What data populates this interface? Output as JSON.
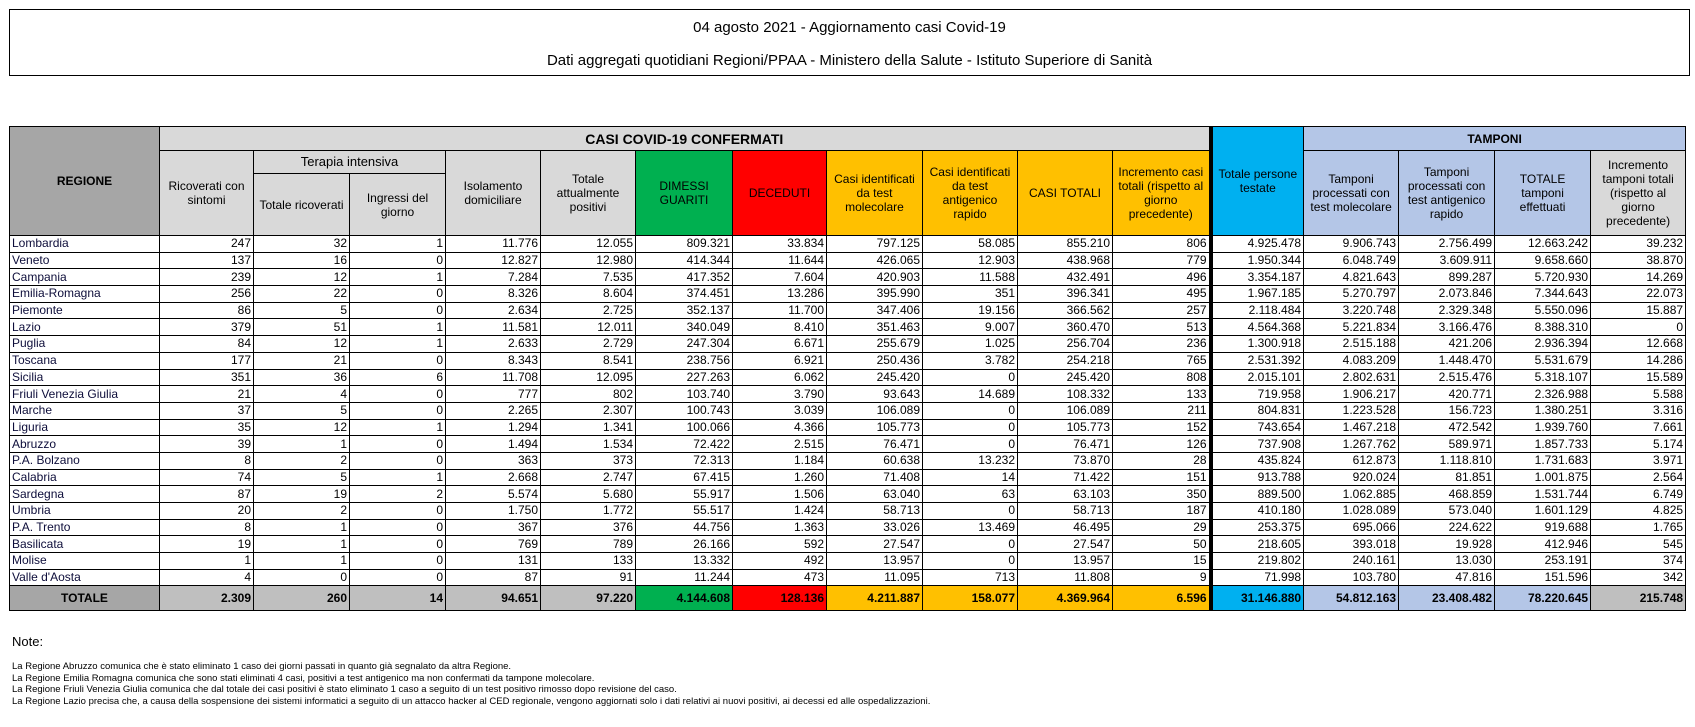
{
  "header": {
    "title": "04 agosto 2021 - Aggiornamento casi Covid-19",
    "subtitle": "Dati aggregati quotidiani Regioni/PPAA - Ministero della Salute - Istituto Superiore di Sanità"
  },
  "table": {
    "regione": "REGIONE",
    "casi_group": "CASI COVID-19 CONFERMATI",
    "terapia_group": "Terapia intensiva",
    "tamponi_group": "TAMPONI",
    "columns": {
      "ricoverati": "Ricoverati con sintomi",
      "ti_totale": "Totale ricoverati",
      "ti_ingressi": "Ingressi del giorno",
      "isolamento": "Isolamento domiciliare",
      "totale_positivi": "Totale attualmente positivi",
      "dimessi": "DIMESSI GUARITI",
      "deceduti": "DECEDUTI",
      "casi_molecolare": "Casi identificati da test molecolare",
      "casi_antigenico": "Casi identificati da test antigenico rapido",
      "casi_totali": "CASI TOTALI",
      "incremento_casi": "Incremento casi totali (rispetto al giorno precedente)",
      "persone_testate": "Totale persone testate",
      "tamponi_molecolare": "Tamponi processati con test molecolare",
      "tamponi_antigenico": "Tamponi processati con test antigenico rapido",
      "tamponi_totale": "TOTALE tamponi effettuati",
      "incremento_tamponi": "Incremento tamponi totali (rispetto al giorno precedente)"
    },
    "rows": [
      [
        "Lombardia",
        "247",
        "32",
        "1",
        "11.776",
        "12.055",
        "809.321",
        "33.834",
        "797.125",
        "58.085",
        "855.210",
        "806",
        "4.925.478",
        "9.906.743",
        "2.756.499",
        "12.663.242",
        "39.232"
      ],
      [
        "Veneto",
        "137",
        "16",
        "0",
        "12.827",
        "12.980",
        "414.344",
        "11.644",
        "426.065",
        "12.903",
        "438.968",
        "779",
        "1.950.344",
        "6.048.749",
        "3.609.911",
        "9.658.660",
        "38.870"
      ],
      [
        "Campania",
        "239",
        "12",
        "1",
        "7.284",
        "7.535",
        "417.352",
        "7.604",
        "420.903",
        "11.588",
        "432.491",
        "496",
        "3.354.187",
        "4.821.643",
        "899.287",
        "5.720.930",
        "14.269"
      ],
      [
        "Emilia-Romagna",
        "256",
        "22",
        "0",
        "8.326",
        "8.604",
        "374.451",
        "13.286",
        "395.990",
        "351",
        "396.341",
        "495",
        "1.967.185",
        "5.270.797",
        "2.073.846",
        "7.344.643",
        "22.073"
      ],
      [
        "Piemonte",
        "86",
        "5",
        "0",
        "2.634",
        "2.725",
        "352.137",
        "11.700",
        "347.406",
        "19.156",
        "366.562",
        "257",
        "2.118.484",
        "3.220.748",
        "2.329.348",
        "5.550.096",
        "15.887"
      ],
      [
        "Lazio",
        "379",
        "51",
        "1",
        "11.581",
        "12.011",
        "340.049",
        "8.410",
        "351.463",
        "9.007",
        "360.470",
        "513",
        "4.564.368",
        "5.221.834",
        "3.166.476",
        "8.388.310",
        "0"
      ],
      [
        "Puglia",
        "84",
        "12",
        "1",
        "2.633",
        "2.729",
        "247.304",
        "6.671",
        "255.679",
        "1.025",
        "256.704",
        "236",
        "1.300.918",
        "2.515.188",
        "421.206",
        "2.936.394",
        "12.668"
      ],
      [
        "Toscana",
        "177",
        "21",
        "0",
        "8.343",
        "8.541",
        "238.756",
        "6.921",
        "250.436",
        "3.782",
        "254.218",
        "765",
        "2.531.392",
        "4.083.209",
        "1.448.470",
        "5.531.679",
        "14.286"
      ],
      [
        "Sicilia",
        "351",
        "36",
        "6",
        "11.708",
        "12.095",
        "227.263",
        "6.062",
        "245.420",
        "0",
        "245.420",
        "808",
        "2.015.101",
        "2.802.631",
        "2.515.476",
        "5.318.107",
        "15.589"
      ],
      [
        "Friuli Venezia Giulia",
        "21",
        "4",
        "0",
        "777",
        "802",
        "103.740",
        "3.790",
        "93.643",
        "14.689",
        "108.332",
        "133",
        "719.958",
        "1.906.217",
        "420.771",
        "2.326.988",
        "5.588"
      ],
      [
        "Marche",
        "37",
        "5",
        "0",
        "2.265",
        "2.307",
        "100.743",
        "3.039",
        "106.089",
        "0",
        "106.089",
        "211",
        "804.831",
        "1.223.528",
        "156.723",
        "1.380.251",
        "3.316"
      ],
      [
        "Liguria",
        "35",
        "12",
        "1",
        "1.294",
        "1.341",
        "100.066",
        "4.366",
        "105.773",
        "0",
        "105.773",
        "152",
        "743.654",
        "1.467.218",
        "472.542",
        "1.939.760",
        "7.661"
      ],
      [
        "Abruzzo",
        "39",
        "1",
        "0",
        "1.494",
        "1.534",
        "72.422",
        "2.515",
        "76.471",
        "0",
        "76.471",
        "126",
        "737.908",
        "1.267.762",
        "589.971",
        "1.857.733",
        "5.174"
      ],
      [
        "P.A. Bolzano",
        "8",
        "2",
        "0",
        "363",
        "373",
        "72.313",
        "1.184",
        "60.638",
        "13.232",
        "73.870",
        "28",
        "435.824",
        "612.873",
        "1.118.810",
        "1.731.683",
        "3.971"
      ],
      [
        "Calabria",
        "74",
        "5",
        "1",
        "2.668",
        "2.747",
        "67.415",
        "1.260",
        "71.408",
        "14",
        "71.422",
        "151",
        "913.788",
        "920.024",
        "81.851",
        "1.001.875",
        "2.564"
      ],
      [
        "Sardegna",
        "87",
        "19",
        "2",
        "5.574",
        "5.680",
        "55.917",
        "1.506",
        "63.040",
        "63",
        "63.103",
        "350",
        "889.500",
        "1.062.885",
        "468.859",
        "1.531.744",
        "6.749"
      ],
      [
        "Umbria",
        "20",
        "2",
        "0",
        "1.750",
        "1.772",
        "55.517",
        "1.424",
        "58.713",
        "0",
        "58.713",
        "187",
        "410.180",
        "1.028.089",
        "573.040",
        "1.601.129",
        "4.825"
      ],
      [
        "P.A. Trento",
        "8",
        "1",
        "0",
        "367",
        "376",
        "44.756",
        "1.363",
        "33.026",
        "13.469",
        "46.495",
        "29",
        "253.375",
        "695.066",
        "224.622",
        "919.688",
        "1.765"
      ],
      [
        "Basilicata",
        "19",
        "1",
        "0",
        "769",
        "789",
        "26.166",
        "592",
        "27.547",
        "0",
        "27.547",
        "50",
        "218.605",
        "393.018",
        "19.928",
        "412.946",
        "545"
      ],
      [
        "Molise",
        "1",
        "1",
        "0",
        "131",
        "133",
        "13.332",
        "492",
        "13.957",
        "0",
        "13.957",
        "15",
        "219.802",
        "240.161",
        "13.030",
        "253.191",
        "374"
      ],
      [
        "Valle d'Aosta",
        "4",
        "0",
        "0",
        "87",
        "91",
        "11.244",
        "473",
        "11.095",
        "713",
        "11.808",
        "9",
        "71.998",
        "103.780",
        "47.816",
        "151.596",
        "342"
      ]
    ],
    "totale": [
      "TOTALE",
      "2.309",
      "260",
      "14",
      "94.651",
      "97.220",
      "4.144.608",
      "128.136",
      "4.211.887",
      "158.077",
      "4.369.964",
      "6.596",
      "31.146.880",
      "54.812.163",
      "23.408.482",
      "78.220.645",
      "215.748"
    ]
  },
  "notes": {
    "label": "Note:",
    "lines": [
      "La Regione Abruzzo comunica che è stato eliminato 1 caso dei giorni passati in quanto già segnalato da altra Regione.",
      "La Regione Emilia Romagna comunica che sono stati eliminati 4 casi, positivi a test antigenico ma non confermati da tampone molecolare.",
      "La Regione Friuli Venezia Giulia comunica che dal totale dei casi positivi è stato eliminato 1 caso a seguito di un test positivo rimosso dopo revisione del caso.",
      "La Regione Lazio precisa che,  a causa della sospensione dei sistemi informatici a seguito di un attacco hacker al CED regionale, vengono aggiornati solo i dati relativi ai nuovi positivi, ai decessi ed  alle ospedalizzazioni."
    ]
  },
  "colors": {
    "header_gray": "#d9d9d9",
    "regione_gray": "#a6a6a6",
    "dimessi_green": "#00b050",
    "deceduti_red": "#ff0000",
    "casi_orange": "#ffc000",
    "testate_blue": "#00b0f0",
    "tamponi_lightblue": "#b4c6e7"
  }
}
